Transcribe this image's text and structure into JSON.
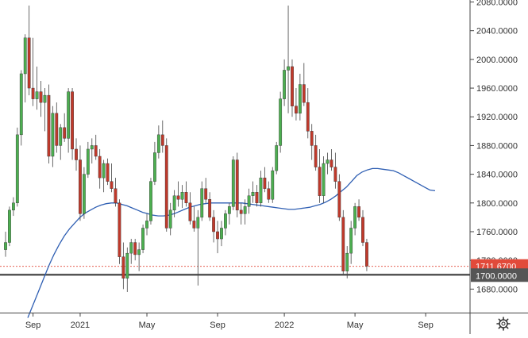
{
  "chart_data": {
    "type": "candlestick",
    "title": "",
    "xlabel": "",
    "ylabel": "",
    "ylim": [
      1640,
      2090
    ],
    "y_ticks": [
      1680,
      1720,
      1760,
      1800,
      1840,
      1880,
      1920,
      1960,
      2000,
      2040,
      2080
    ],
    "y_tick_labels": [
      "1680.0000",
      "1720.0000",
      "1760.0000",
      "1800.0000",
      "1840.0000",
      "1880.0000",
      "1920.0000",
      "1960.0000",
      "2000.0000",
      "2040.0000",
      "2080.0000"
    ],
    "x_tick_labels": [
      "Sep",
      "2021",
      "May",
      "Sep",
      "2022",
      "May",
      "Sep"
    ],
    "x_tick_candle_index": [
      7,
      19,
      36,
      54,
      71,
      89,
      107
    ],
    "grid": false,
    "colors": {
      "up": "#4caf50",
      "down": "#c0392b",
      "ma_line": "#2f5fb3",
      "last_price_bg": "#e24a3a",
      "level_bg": "#555555",
      "support_line": "#555555",
      "wick": "#444444"
    },
    "candles": [
      {
        "o": 1735,
        "h": 1760,
        "l": 1725,
        "c": 1745
      },
      {
        "o": 1745,
        "h": 1795,
        "l": 1740,
        "c": 1790
      },
      {
        "o": 1790,
        "h": 1808,
        "l": 1782,
        "c": 1800
      },
      {
        "o": 1800,
        "h": 1905,
        "l": 1795,
        "c": 1895
      },
      {
        "o": 1895,
        "h": 1985,
        "l": 1880,
        "c": 1980
      },
      {
        "o": 1980,
        "h": 2035,
        "l": 1940,
        "c": 2030
      },
      {
        "o": 2030,
        "h": 2075,
        "l": 1950,
        "c": 1960
      },
      {
        "o": 1960,
        "h": 2030,
        "l": 1935,
        "c": 1945
      },
      {
        "o": 1945,
        "h": 1990,
        "l": 1930,
        "c": 1955
      },
      {
        "o": 1955,
        "h": 1970,
        "l": 1920,
        "c": 1940
      },
      {
        "o": 1940,
        "h": 1960,
        "l": 1900,
        "c": 1950
      },
      {
        "o": 1950,
        "h": 1965,
        "l": 1855,
        "c": 1865
      },
      {
        "o": 1865,
        "h": 1935,
        "l": 1850,
        "c": 1925
      },
      {
        "o": 1925,
        "h": 1940,
        "l": 1870,
        "c": 1880
      },
      {
        "o": 1880,
        "h": 1910,
        "l": 1860,
        "c": 1905
      },
      {
        "o": 1905,
        "h": 1925,
        "l": 1885,
        "c": 1890
      },
      {
        "o": 1890,
        "h": 1960,
        "l": 1870,
        "c": 1955
      },
      {
        "o": 1955,
        "h": 1960,
        "l": 1860,
        "c": 1875
      },
      {
        "o": 1875,
        "h": 1890,
        "l": 1845,
        "c": 1860
      },
      {
        "o": 1860,
        "h": 1880,
        "l": 1775,
        "c": 1785
      },
      {
        "o": 1785,
        "h": 1850,
        "l": 1778,
        "c": 1840
      },
      {
        "o": 1840,
        "h": 1885,
        "l": 1835,
        "c": 1875
      },
      {
        "o": 1875,
        "h": 1890,
        "l": 1855,
        "c": 1880
      },
      {
        "o": 1880,
        "h": 1895,
        "l": 1860,
        "c": 1865
      },
      {
        "o": 1865,
        "h": 1875,
        "l": 1820,
        "c": 1835
      },
      {
        "o": 1835,
        "h": 1860,
        "l": 1815,
        "c": 1855
      },
      {
        "o": 1855,
        "h": 1862,
        "l": 1825,
        "c": 1830
      },
      {
        "o": 1830,
        "h": 1855,
        "l": 1815,
        "c": 1820
      },
      {
        "o": 1820,
        "h": 1835,
        "l": 1795,
        "c": 1800
      },
      {
        "o": 1800,
        "h": 1805,
        "l": 1715,
        "c": 1725
      },
      {
        "o": 1725,
        "h": 1745,
        "l": 1680,
        "c": 1695
      },
      {
        "o": 1695,
        "h": 1738,
        "l": 1676,
        "c": 1730
      },
      {
        "o": 1730,
        "h": 1750,
        "l": 1715,
        "c": 1745
      },
      {
        "o": 1745,
        "h": 1750,
        "l": 1720,
        "c": 1728
      },
      {
        "o": 1728,
        "h": 1745,
        "l": 1705,
        "c": 1735
      },
      {
        "o": 1735,
        "h": 1770,
        "l": 1730,
        "c": 1765
      },
      {
        "o": 1765,
        "h": 1785,
        "l": 1755,
        "c": 1775
      },
      {
        "o": 1775,
        "h": 1835,
        "l": 1770,
        "c": 1830
      },
      {
        "o": 1830,
        "h": 1885,
        "l": 1825,
        "c": 1870
      },
      {
        "o": 1870,
        "h": 1908,
        "l": 1862,
        "c": 1895
      },
      {
        "o": 1895,
        "h": 1915,
        "l": 1870,
        "c": 1880
      },
      {
        "o": 1880,
        "h": 1890,
        "l": 1760,
        "c": 1765
      },
      {
        "o": 1765,
        "h": 1800,
        "l": 1755,
        "c": 1790
      },
      {
        "o": 1790,
        "h": 1818,
        "l": 1780,
        "c": 1810
      },
      {
        "o": 1810,
        "h": 1830,
        "l": 1795,
        "c": 1805
      },
      {
        "o": 1805,
        "h": 1825,
        "l": 1793,
        "c": 1815
      },
      {
        "o": 1815,
        "h": 1830,
        "l": 1795,
        "c": 1800
      },
      {
        "o": 1800,
        "h": 1815,
        "l": 1770,
        "c": 1775
      },
      {
        "o": 1775,
        "h": 1795,
        "l": 1760,
        "c": 1765
      },
      {
        "o": 1765,
        "h": 1790,
        "l": 1685,
        "c": 1780
      },
      {
        "o": 1780,
        "h": 1830,
        "l": 1775,
        "c": 1820
      },
      {
        "o": 1820,
        "h": 1835,
        "l": 1800,
        "c": 1805
      },
      {
        "o": 1805,
        "h": 1815,
        "l": 1775,
        "c": 1780
      },
      {
        "o": 1780,
        "h": 1790,
        "l": 1745,
        "c": 1760
      },
      {
        "o": 1760,
        "h": 1775,
        "l": 1730,
        "c": 1750
      },
      {
        "o": 1750,
        "h": 1775,
        "l": 1740,
        "c": 1765
      },
      {
        "o": 1765,
        "h": 1790,
        "l": 1755,
        "c": 1785
      },
      {
        "o": 1785,
        "h": 1800,
        "l": 1770,
        "c": 1795
      },
      {
        "o": 1795,
        "h": 1865,
        "l": 1790,
        "c": 1860
      },
      {
        "o": 1860,
        "h": 1870,
        "l": 1780,
        "c": 1790
      },
      {
        "o": 1790,
        "h": 1800,
        "l": 1770,
        "c": 1785
      },
      {
        "o": 1785,
        "h": 1805,
        "l": 1770,
        "c": 1795
      },
      {
        "o": 1795,
        "h": 1820,
        "l": 1785,
        "c": 1810
      },
      {
        "o": 1810,
        "h": 1830,
        "l": 1800,
        "c": 1815
      },
      {
        "o": 1815,
        "h": 1825,
        "l": 1795,
        "c": 1800
      },
      {
        "o": 1800,
        "h": 1845,
        "l": 1795,
        "c": 1835
      },
      {
        "o": 1835,
        "h": 1850,
        "l": 1815,
        "c": 1820
      },
      {
        "o": 1820,
        "h": 1830,
        "l": 1800,
        "c": 1805
      },
      {
        "o": 1805,
        "h": 1850,
        "l": 1800,
        "c": 1845
      },
      {
        "o": 1845,
        "h": 1885,
        "l": 1840,
        "c": 1880
      },
      {
        "o": 1880,
        "h": 1955,
        "l": 1870,
        "c": 1945
      },
      {
        "o": 1945,
        "h": 2000,
        "l": 1935,
        "c": 1985
      },
      {
        "o": 1985,
        "h": 2075,
        "l": 1925,
        "c": 1990
      },
      {
        "o": 1990,
        "h": 2000,
        "l": 1920,
        "c": 1935
      },
      {
        "o": 1935,
        "h": 1960,
        "l": 1915,
        "c": 1925
      },
      {
        "o": 1925,
        "h": 1980,
        "l": 1915,
        "c": 1965
      },
      {
        "o": 1965,
        "h": 1995,
        "l": 1935,
        "c": 1940
      },
      {
        "o": 1940,
        "h": 1960,
        "l": 1890,
        "c": 1900
      },
      {
        "o": 1900,
        "h": 1910,
        "l": 1860,
        "c": 1880
      },
      {
        "o": 1880,
        "h": 1895,
        "l": 1845,
        "c": 1850
      },
      {
        "o": 1850,
        "h": 1875,
        "l": 1800,
        "c": 1810
      },
      {
        "o": 1810,
        "h": 1865,
        "l": 1800,
        "c": 1855
      },
      {
        "o": 1855,
        "h": 1870,
        "l": 1840,
        "c": 1860
      },
      {
        "o": 1860,
        "h": 1875,
        "l": 1845,
        "c": 1850
      },
      {
        "o": 1850,
        "h": 1870,
        "l": 1820,
        "c": 1830
      },
      {
        "o": 1830,
        "h": 1840,
        "l": 1775,
        "c": 1780
      },
      {
        "o": 1780,
        "h": 1790,
        "l": 1700,
        "c": 1705
      },
      {
        "o": 1705,
        "h": 1740,
        "l": 1695,
        "c": 1730
      },
      {
        "o": 1730,
        "h": 1775,
        "l": 1715,
        "c": 1765
      },
      {
        "o": 1765,
        "h": 1800,
        "l": 1755,
        "c": 1795
      },
      {
        "o": 1795,
        "h": 1805,
        "l": 1775,
        "c": 1780
      },
      {
        "o": 1780,
        "h": 1790,
        "l": 1740,
        "c": 1745
      },
      {
        "o": 1745,
        "h": 1750,
        "l": 1705,
        "c": 1712
      }
    ],
    "ma_series": [
      1640,
      1658,
      1676,
      1694,
      1712,
      1728,
      1742,
      1754,
      1764,
      1772,
      1780,
      1786,
      1790,
      1794,
      1797,
      1799,
      1800,
      1800,
      1798,
      1796,
      1793,
      1790,
      1787,
      1785,
      1783,
      1782,
      1782,
      1783,
      1785,
      1788,
      1791,
      1794,
      1796,
      1798,
      1799,
      1800,
      1800,
      1800,
      1800,
      1800,
      1800,
      1800,
      1799,
      1798,
      1797,
      1796,
      1795,
      1794,
      1793,
      1792,
      1791,
      1791,
      1792,
      1793,
      1794,
      1796,
      1798,
      1801,
      1805,
      1810,
      1816,
      1822,
      1830,
      1838,
      1843,
      1846,
      1848,
      1848,
      1847,
      1846,
      1845,
      1842,
      1838,
      1834,
      1830,
      1826,
      1822,
      1818,
      1817
    ],
    "last_price_label": "1711.6700",
    "last_price_value": 1711.67,
    "level_label": "1700.0000",
    "level_value": 1700,
    "settings_icon": "gear-icon"
  }
}
